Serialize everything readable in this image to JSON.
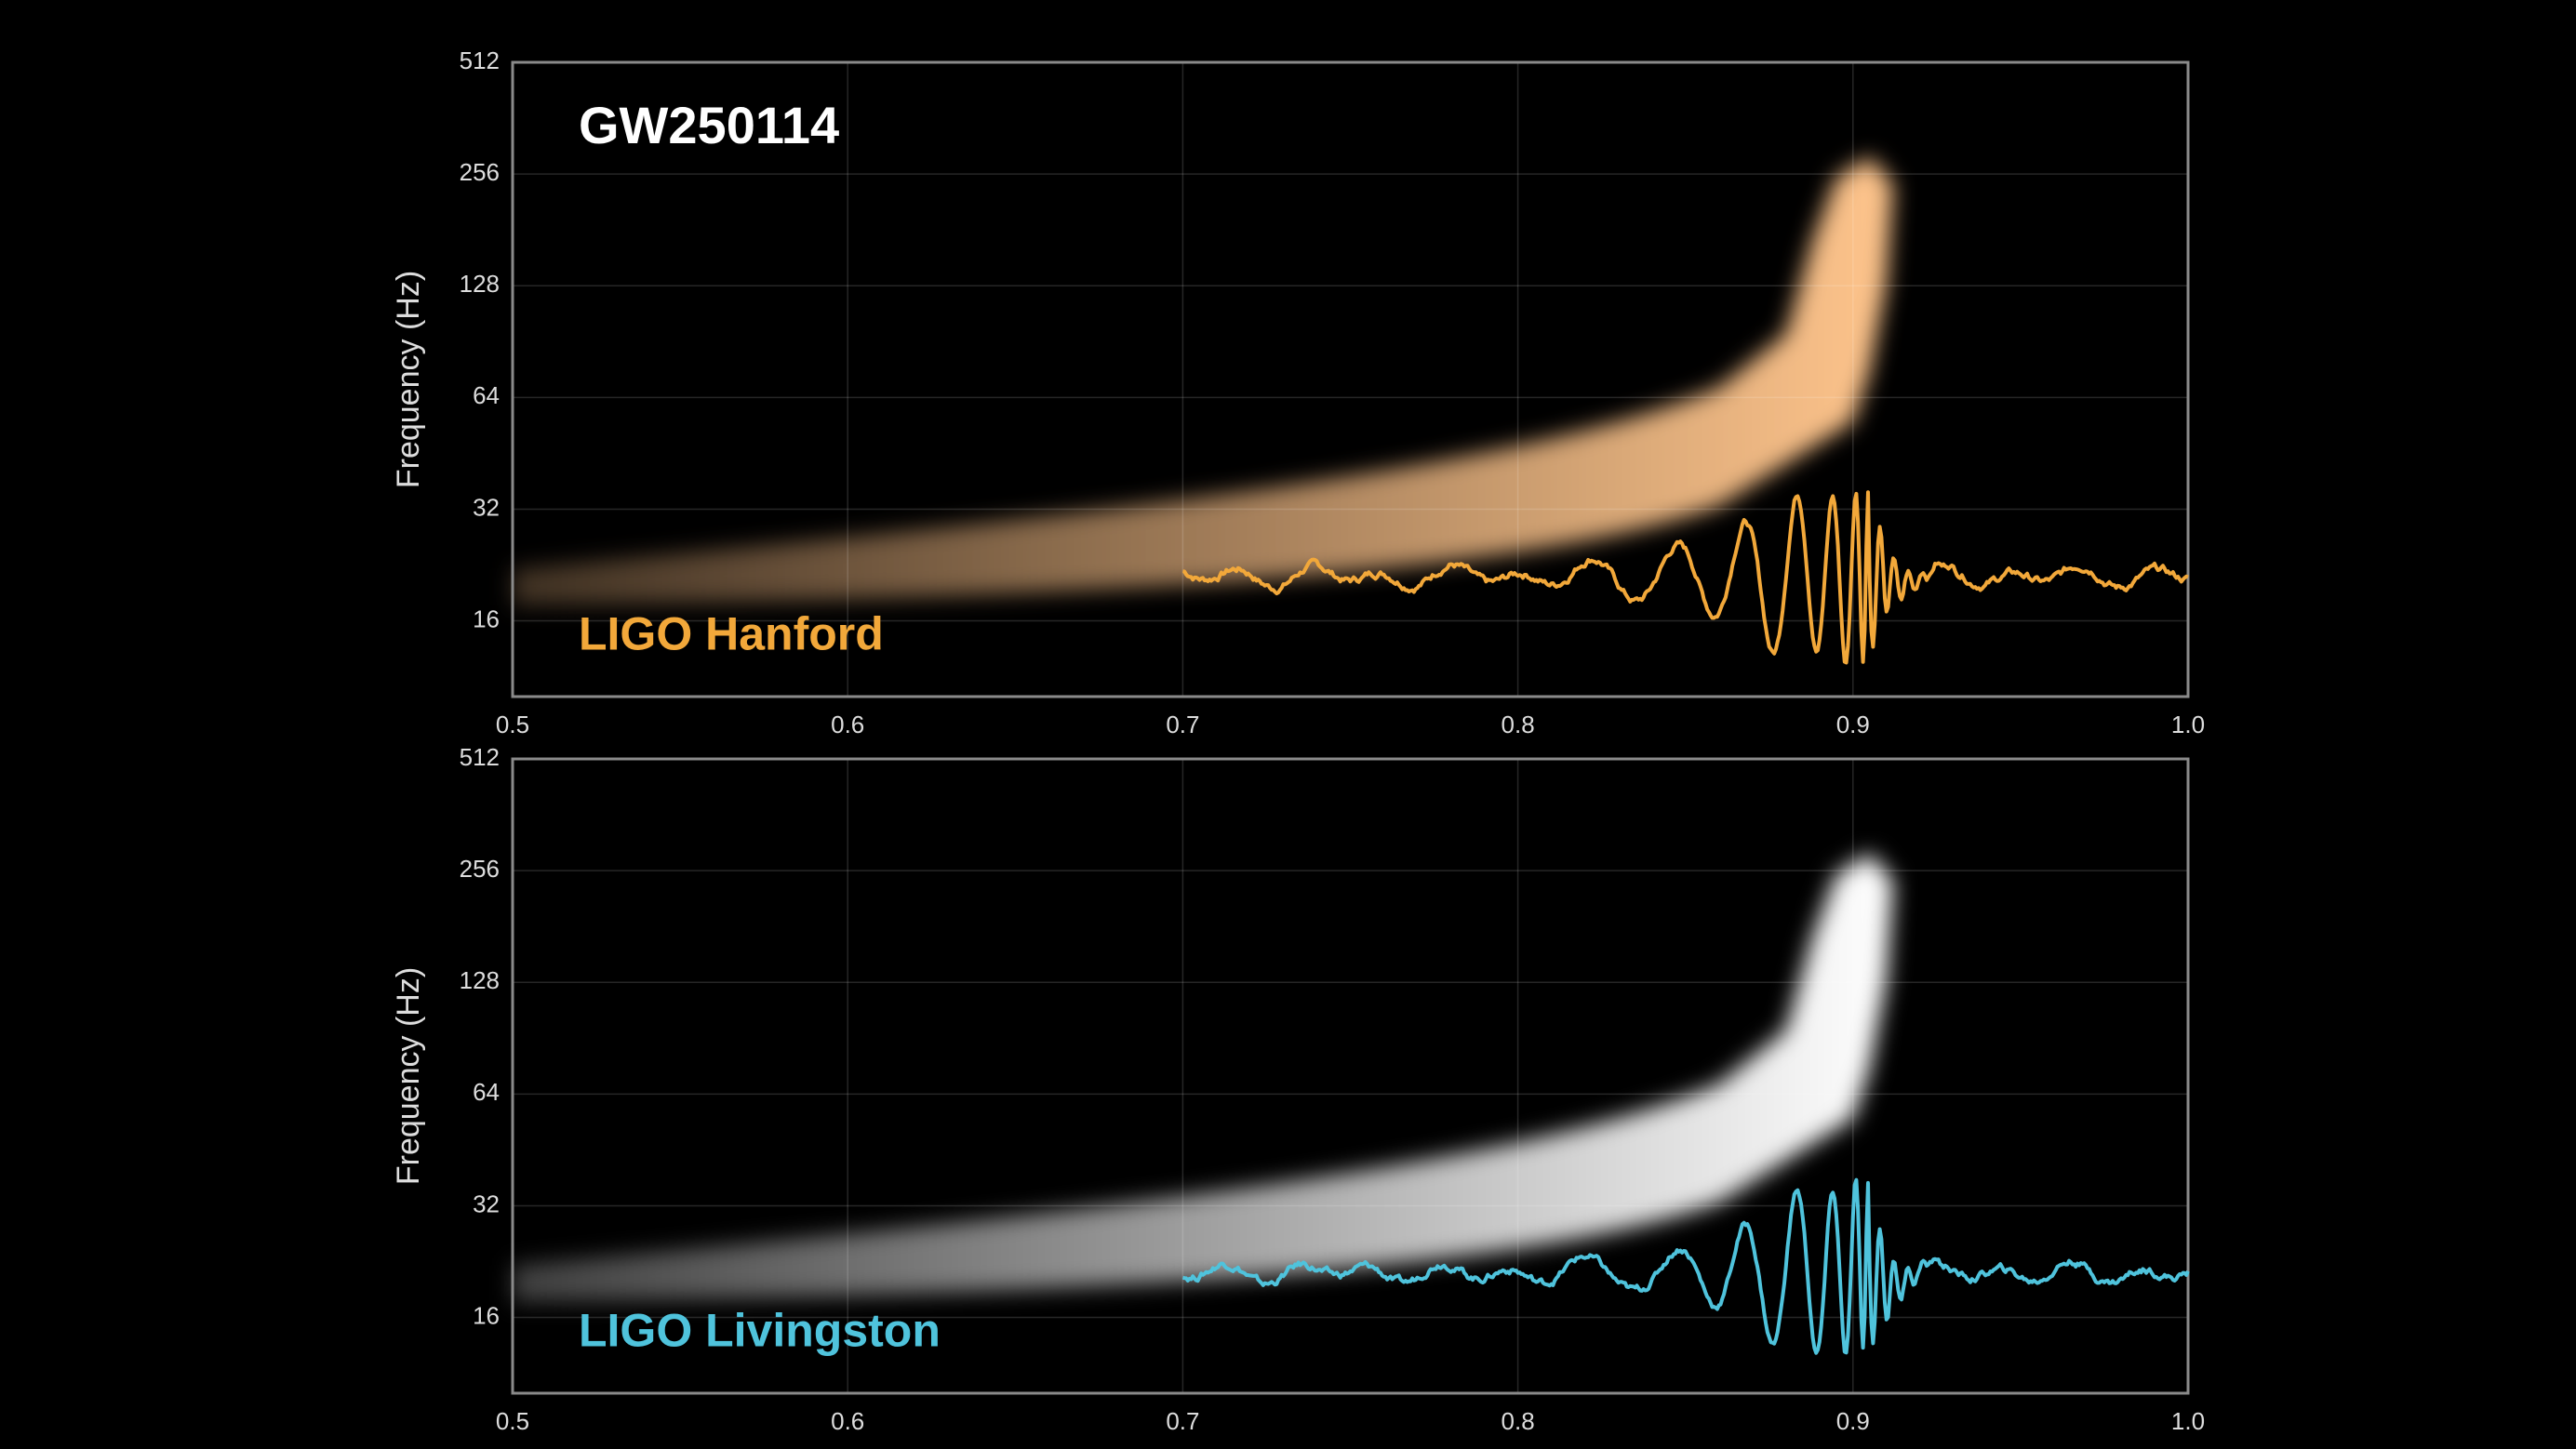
{
  "chart_data": [
    {
      "type": "spectrogram",
      "title": "GW250114",
      "label": "LIGO Hanford",
      "y_label": "Frequency (Hz)",
      "color": "#f2a83a",
      "spectrogram_color": "#ffc58c",
      "xlim": [
        0.5,
        1.0
      ],
      "xticks": [
        0.5,
        0.6,
        0.7,
        0.8,
        0.9,
        {
          "value": 1,
          "label": "1.0"
        }
      ],
      "ylim": [
        10,
        512
      ],
      "yticks": [
        16,
        32,
        64,
        128,
        256,
        512
      ],
      "log_scale": true,
      "grid": true
    },
    {
      "type": "spectrogram",
      "label": "LIGO Livingston",
      "y_label": "Frequency (Hz)",
      "color": "#4fc3dc",
      "spectrogram_color": "#ffffff",
      "xlim": [
        0.5,
        1.0
      ],
      "xticks": [
        0.5,
        0.6,
        0.7,
        0.8,
        0.9,
        {
          "value": 1,
          "label": "1.0"
        }
      ],
      "ylim": [
        10,
        512
      ],
      "yticks": [
        16,
        32,
        64,
        128,
        256,
        512
      ],
      "log_scale": true,
      "grid": true
    }
  ]
}
